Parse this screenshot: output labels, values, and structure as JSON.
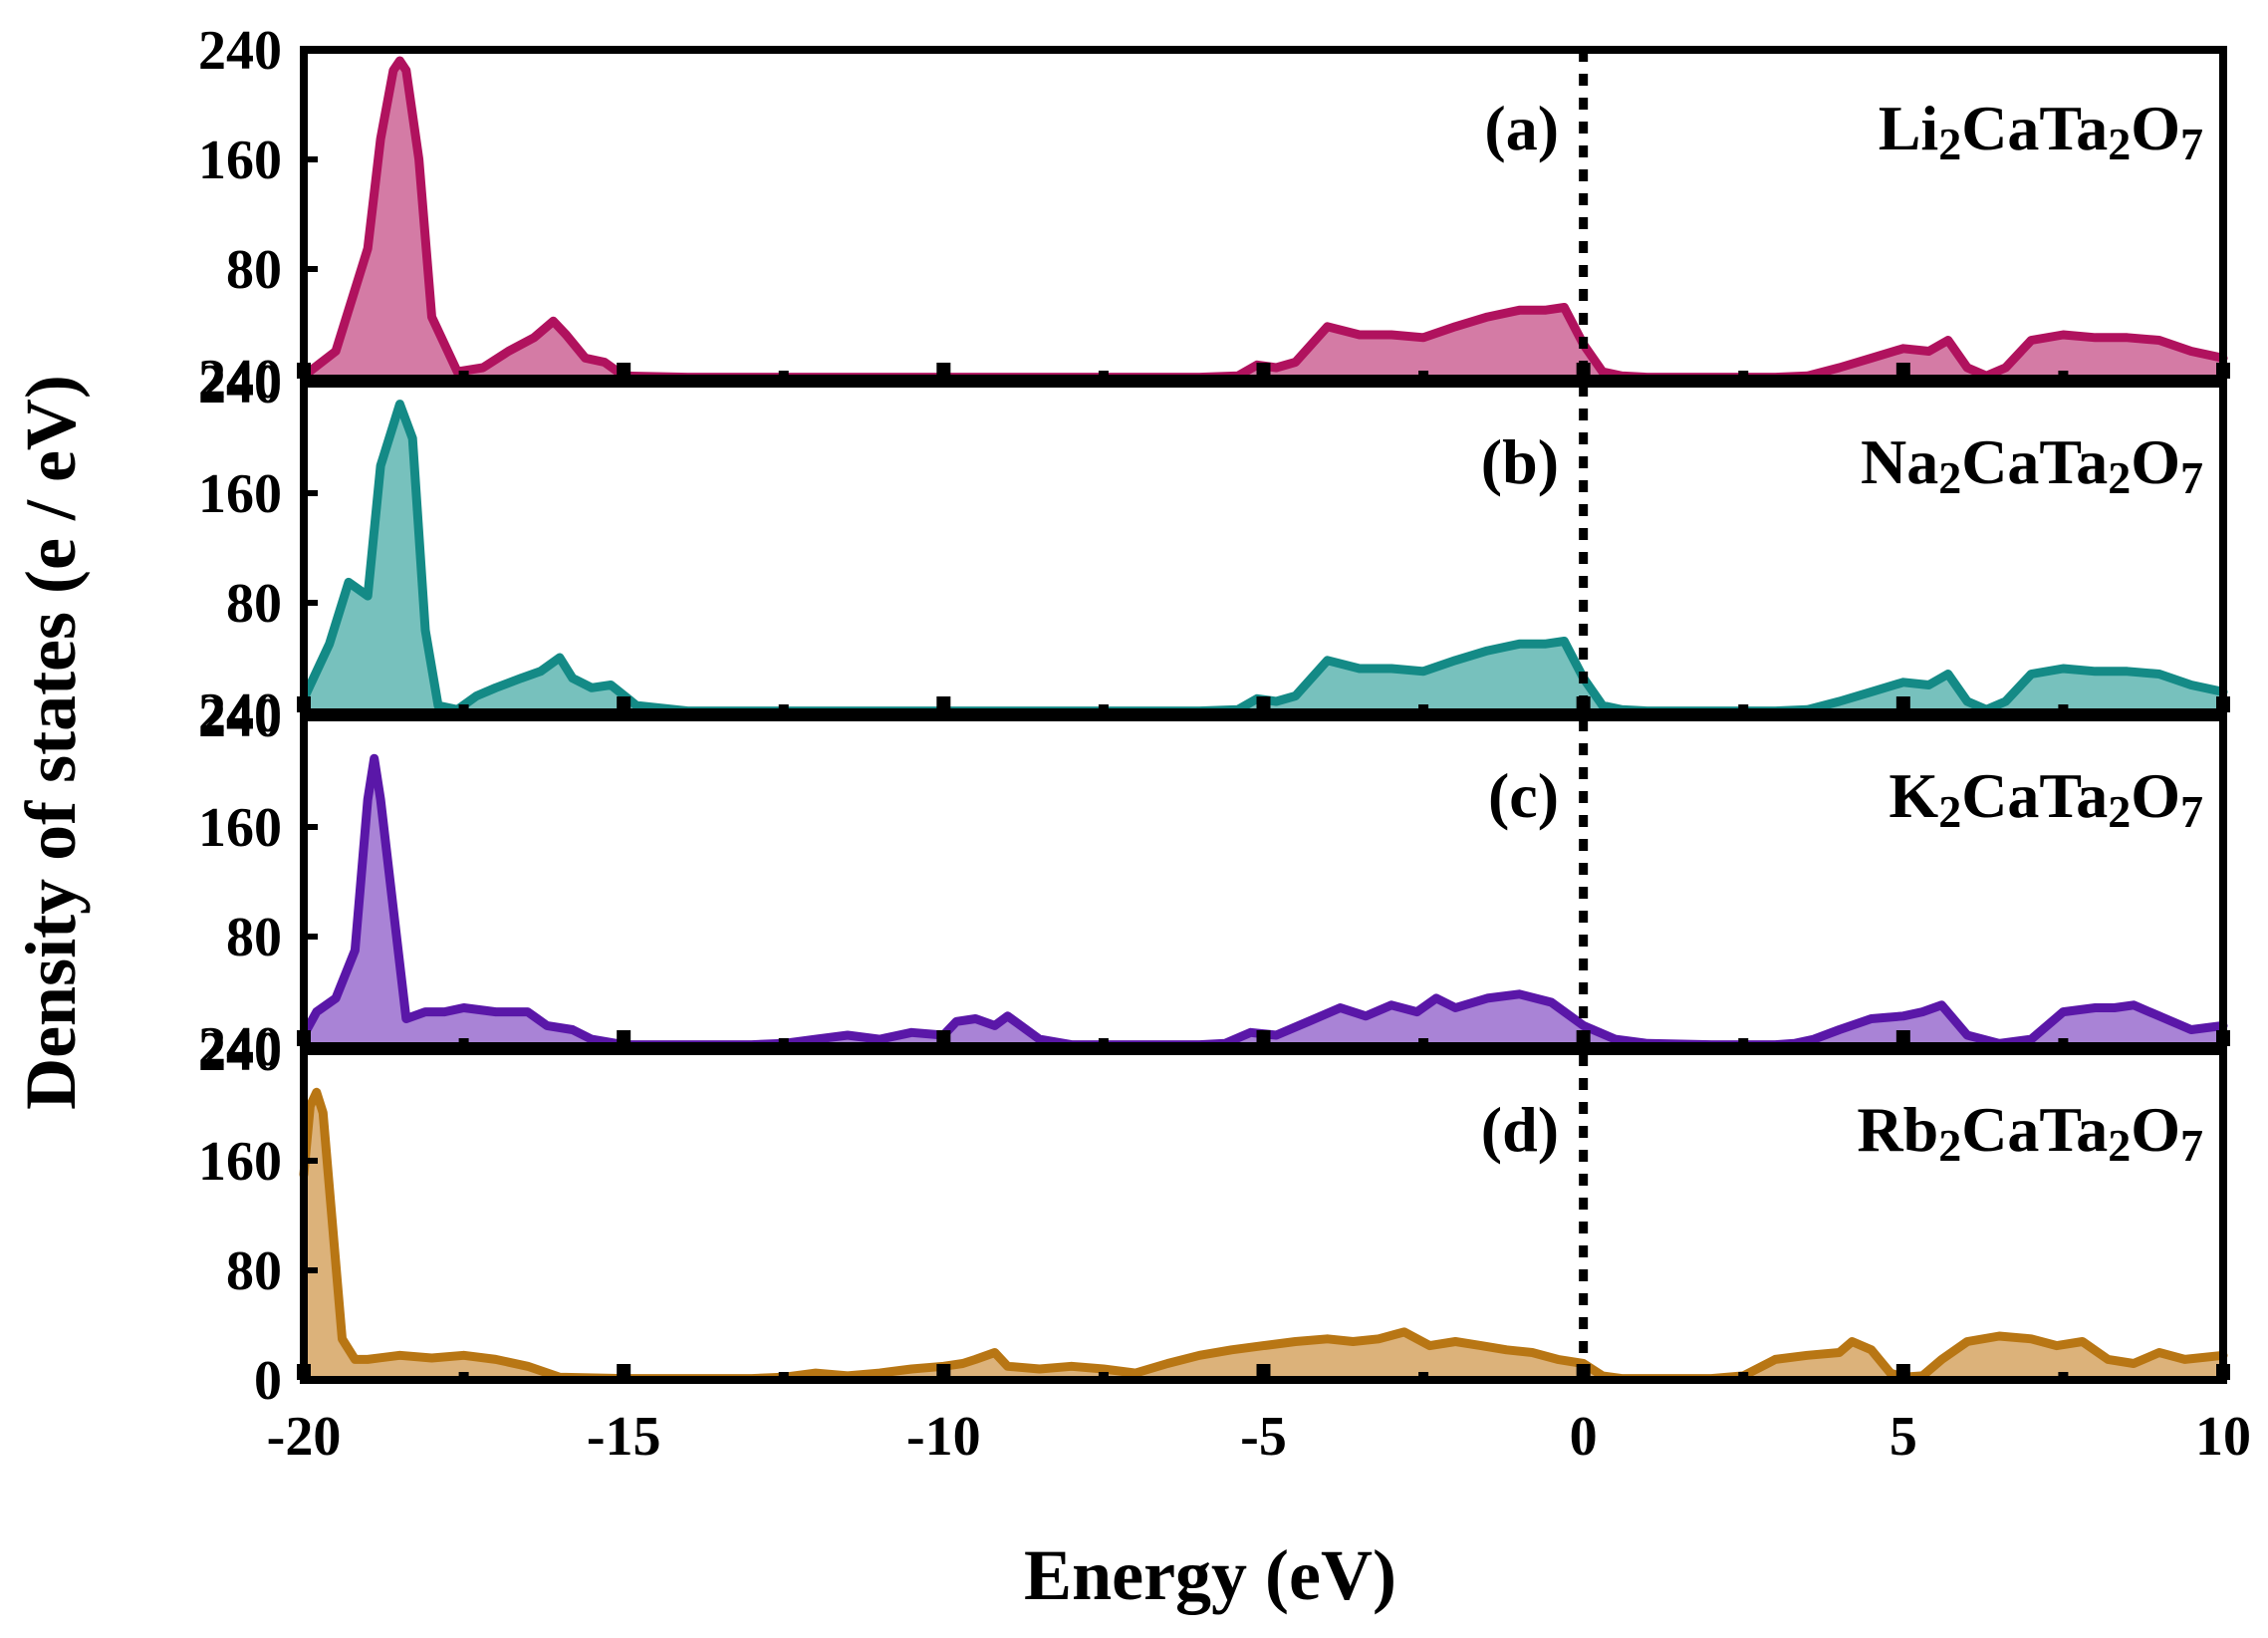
{
  "chart_data": [
    {
      "type": "area",
      "panel": "a",
      "panel_label": "(a)",
      "formula": [
        {
          "t": "Li"
        },
        {
          "t": "2",
          "sub": true
        },
        {
          "t": "CaTa"
        },
        {
          "t": "2",
          "sub": true
        },
        {
          "t": "O"
        },
        {
          "t": "7",
          "sub": true
        }
      ],
      "color": "#b0125e",
      "fill": "#d47ba5",
      "ylim": [
        0,
        240
      ],
      "yticks": [
        "80",
        "160",
        "240"
      ],
      "x": [
        -20,
        -19.5,
        -19.0,
        -18.8,
        -18.6,
        -18.5,
        -18.4,
        -18.2,
        -18.0,
        -17.6,
        -17.2,
        -16.8,
        -16.4,
        -16.1,
        -15.9,
        -15.6,
        -15.3,
        -15.0,
        -14.0,
        -13.0,
        -12.0,
        -11.0,
        -10.0,
        -9.0,
        -8.0,
        -7.0,
        -6.0,
        -5.4,
        -5.1,
        -4.8,
        -4.5,
        -4.0,
        -3.5,
        -3.0,
        -2.5,
        -2.0,
        -1.5,
        -1.0,
        -0.6,
        -0.3,
        0.0,
        0.3,
        0.6,
        1.0,
        2.0,
        3.0,
        3.5,
        4.0,
        4.5,
        5.0,
        5.4,
        5.7,
        6.0,
        6.3,
        6.6,
        7.0,
        7.5,
        8.0,
        8.5,
        9.0,
        9.5,
        10.0
      ],
      "y": [
        2,
        20,
        95,
        175,
        225,
        232,
        225,
        160,
        45,
        5,
        8,
        20,
        30,
        42,
        32,
        15,
        12,
        2,
        1,
        1,
        1,
        1,
        1,
        1,
        1,
        1,
        1,
        2,
        10,
        8,
        12,
        38,
        32,
        32,
        30,
        38,
        45,
        50,
        50,
        52,
        25,
        5,
        2,
        1,
        1,
        1,
        2,
        8,
        15,
        22,
        20,
        28,
        8,
        2,
        8,
        28,
        32,
        30,
        30,
        28,
        20,
        15
      ]
    },
    {
      "type": "area",
      "panel": "b",
      "panel_label": "(b)",
      "formula": [
        {
          "t": "Na"
        },
        {
          "t": "2",
          "sub": true
        },
        {
          "t": "CaTa"
        },
        {
          "t": "2",
          "sub": true
        },
        {
          "t": "O"
        },
        {
          "t": "7",
          "sub": true
        }
      ],
      "color": "#148a86",
      "fill": "#77c1bd",
      "ylim": [
        0,
        240
      ],
      "yticks": [
        "80",
        "160",
        "240"
      ],
      "x": [
        -20,
        -19.6,
        -19.3,
        -19.0,
        -18.8,
        -18.5,
        -18.3,
        -18.1,
        -17.9,
        -17.6,
        -17.3,
        -17.0,
        -16.6,
        -16.3,
        -16.0,
        -15.8,
        -15.5,
        -15.2,
        -14.8,
        -14.0,
        -13.0,
        -12.0,
        -11.0,
        -10.0,
        -9.0,
        -8.0,
        -7.0,
        -6.0,
        -5.4,
        -5.1,
        -4.8,
        -4.5,
        -4.0,
        -3.5,
        -3.0,
        -2.5,
        -2.0,
        -1.5,
        -1.0,
        -0.6,
        -0.3,
        0.0,
        0.3,
        0.6,
        1.0,
        2.0,
        3.0,
        3.5,
        4.0,
        4.5,
        5.0,
        5.4,
        5.7,
        6.0,
        6.3,
        6.6,
        7.0,
        7.5,
        8.0,
        8.5,
        9.0,
        9.5,
        10.0
      ],
      "y": [
        10,
        50,
        95,
        85,
        180,
        225,
        200,
        60,
        5,
        2,
        12,
        18,
        25,
        30,
        40,
        25,
        18,
        20,
        5,
        1,
        1,
        1,
        1,
        1,
        1,
        1,
        1,
        1,
        2,
        10,
        8,
        12,
        38,
        32,
        32,
        30,
        38,
        45,
        50,
        50,
        52,
        25,
        5,
        2,
        1,
        1,
        1,
        2,
        8,
        15,
        22,
        20,
        28,
        8,
        2,
        8,
        28,
        32,
        30,
        30,
        28,
        20,
        15
      ]
    },
    {
      "type": "area",
      "panel": "c",
      "panel_label": "(c)",
      "formula": [
        {
          "t": "K"
        },
        {
          "t": "2",
          "sub": true
        },
        {
          "t": "CaTa"
        },
        {
          "t": "2",
          "sub": true
        },
        {
          "t": "O"
        },
        {
          "t": "7",
          "sub": true
        }
      ],
      "color": "#5a17a8",
      "fill": "#a983d6",
      "ylim": [
        0,
        240
      ],
      "yticks": [
        "80",
        "160",
        "240"
      ],
      "x": [
        -20,
        -19.8,
        -19.5,
        -19.2,
        -19.0,
        -18.9,
        -18.8,
        -18.6,
        -18.4,
        -18.1,
        -17.8,
        -17.5,
        -17.0,
        -16.5,
        -16.2,
        -15.8,
        -15.5,
        -15.0,
        -14.0,
        -13.0,
        -12.5,
        -12.0,
        -11.5,
        -11.0,
        -10.5,
        -10.0,
        -9.8,
        -9.5,
        -9.2,
        -9.0,
        -8.5,
        -8.0,
        -7.0,
        -6.0,
        -5.6,
        -5.2,
        -4.8,
        -4.3,
        -3.8,
        -3.4,
        -3.0,
        -2.6,
        -2.3,
        -2.0,
        -1.5,
        -1.0,
        -0.5,
        0.0,
        0.5,
        1.0,
        2.0,
        3.0,
        3.3,
        3.6,
        4.0,
        4.5,
        5.0,
        5.3,
        5.6,
        6.0,
        6.5,
        7.0,
        7.5,
        8.0,
        8.3,
        8.6,
        9.0,
        9.5,
        10.0
      ],
      "y": [
        8,
        25,
        35,
        70,
        180,
        210,
        180,
        100,
        20,
        25,
        25,
        28,
        25,
        25,
        15,
        12,
        5,
        1,
        1,
        1,
        2,
        5,
        8,
        5,
        10,
        8,
        18,
        20,
        15,
        22,
        5,
        1,
        1,
        1,
        2,
        10,
        8,
        18,
        28,
        22,
        30,
        25,
        35,
        28,
        35,
        38,
        32,
        15,
        5,
        2,
        1,
        1,
        2,
        5,
        12,
        20,
        22,
        25,
        30,
        8,
        2,
        5,
        25,
        28,
        28,
        30,
        22,
        12,
        15
      ]
    },
    {
      "type": "area",
      "panel": "d",
      "panel_label": "(d)",
      "formula": [
        {
          "t": "Rb"
        },
        {
          "t": "2",
          "sub": true
        },
        {
          "t": "CaTa"
        },
        {
          "t": "2",
          "sub": true
        },
        {
          "t": "O"
        },
        {
          "t": "7",
          "sub": true
        }
      ],
      "color": "#b87614",
      "fill": "#dcb27a",
      "ylim": [
        0,
        240
      ],
      "yticks": [
        "0",
        "80",
        "160",
        "240"
      ],
      "x": [
        -20,
        -19.9,
        -19.8,
        -19.7,
        -19.6,
        -19.4,
        -19.2,
        -19.0,
        -18.5,
        -18.0,
        -17.5,
        -17.0,
        -16.5,
        -16.0,
        -15.0,
        -14.0,
        -13.0,
        -12.5,
        -12.0,
        -11.5,
        -11.0,
        -10.5,
        -10.0,
        -9.7,
        -9.5,
        -9.2,
        -9.0,
        -8.5,
        -8.0,
        -7.5,
        -7.0,
        -6.5,
        -6.0,
        -5.5,
        -5.0,
        -4.5,
        -4.0,
        -3.6,
        -3.2,
        -2.8,
        -2.4,
        -2.0,
        -1.6,
        -1.2,
        -0.8,
        -0.4,
        0.0,
        0.3,
        0.6,
        1.0,
        2.0,
        2.5,
        3.0,
        3.5,
        4.0,
        4.2,
        4.5,
        4.8,
        5.0,
        5.3,
        5.6,
        6.0,
        6.5,
        7.0,
        7.4,
        7.8,
        8.2,
        8.6,
        9.0,
        9.4,
        10.0
      ],
      "y": [
        150,
        200,
        210,
        195,
        140,
        30,
        15,
        15,
        18,
        16,
        18,
        15,
        10,
        2,
        1,
        1,
        1,
        2,
        5,
        3,
        5,
        8,
        10,
        12,
        15,
        20,
        10,
        8,
        10,
        8,
        5,
        12,
        18,
        22,
        25,
        28,
        30,
        28,
        30,
        35,
        25,
        28,
        25,
        22,
        20,
        15,
        12,
        3,
        1,
        1,
        1,
        3,
        15,
        18,
        20,
        28,
        22,
        5,
        2,
        3,
        15,
        28,
        32,
        30,
        25,
        28,
        15,
        12,
        20,
        15,
        18
      ]
    }
  ],
  "x_axis": {
    "title": "Energy (eV)",
    "range": [
      -20,
      10
    ],
    "tick_values": [
      -20,
      -15,
      -10,
      -5,
      0,
      5,
      10
    ],
    "tick_labels": [
      "-20",
      "-15",
      "-10",
      "-5",
      "0",
      "5",
      "10"
    ],
    "minor_ticks": [
      -17.5,
      -12.5,
      -7.5,
      -2.5,
      2.5,
      7.5
    ]
  },
  "y_axis": {
    "title": "Density of states (e / eV)"
  },
  "reference_line": {
    "x": 0,
    "style": "dotted"
  }
}
